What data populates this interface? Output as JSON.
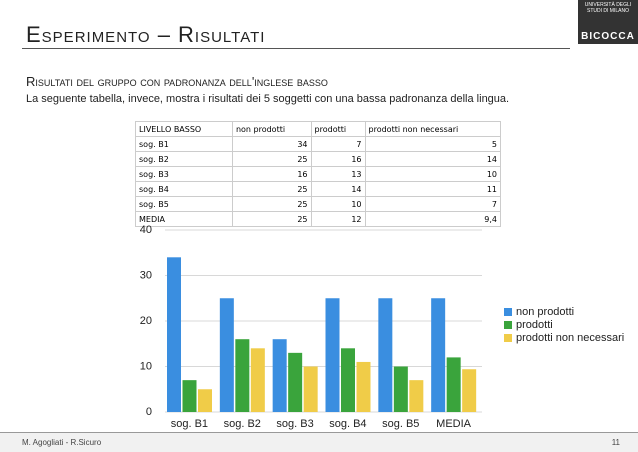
{
  "slide": {
    "title": "Esperimento – Risultati",
    "subtitle": "Risultati del gruppo con padronanza dell'inglese basso",
    "text": "La seguente tabella, invece, mostra i risultati dei 5 soggetti con una bassa padronanza della lingua.",
    "footer": "M. Agogliati - R.Sicuro",
    "page": "11",
    "logo": {
      "top": "UNIVERSITÀ DEGLI STUDI DI MILANO",
      "name": "BICOCCA"
    }
  },
  "table": {
    "header": [
      "LIVELLO BASSO",
      "non prodotti",
      "prodotti",
      "prodotti non necessari"
    ],
    "rows": [
      [
        "sog. B1",
        34,
        7,
        5
      ],
      [
        "sog. B2",
        25,
        16,
        14
      ],
      [
        "sog. B3",
        16,
        13,
        10
      ],
      [
        "sog. B4",
        25,
        14,
        11
      ],
      [
        "sog. B5",
        25,
        10,
        7
      ],
      [
        "MEDIA",
        25,
        12,
        "9,4"
      ]
    ]
  },
  "chart_data": {
    "type": "bar",
    "categories": [
      "sog. B1",
      "sog. B2",
      "sog. B3",
      "sog. B4",
      "sog. B5",
      "MEDIA"
    ],
    "series": [
      {
        "name": "non prodotti",
        "color": "#3a8ee0",
        "values": [
          34,
          25,
          16,
          25,
          25,
          25
        ]
      },
      {
        "name": "prodotti",
        "color": "#3aa43c",
        "values": [
          7,
          16,
          13,
          14,
          10,
          12
        ]
      },
      {
        "name": "prodotti non necessari",
        "color": "#f0cc48",
        "values": [
          5,
          14,
          10,
          11,
          7,
          9.4
        ]
      }
    ],
    "ylim": [
      0,
      40
    ],
    "yticks": [
      0,
      10,
      20,
      30,
      40
    ],
    "grid": true,
    "legend": "right"
  }
}
